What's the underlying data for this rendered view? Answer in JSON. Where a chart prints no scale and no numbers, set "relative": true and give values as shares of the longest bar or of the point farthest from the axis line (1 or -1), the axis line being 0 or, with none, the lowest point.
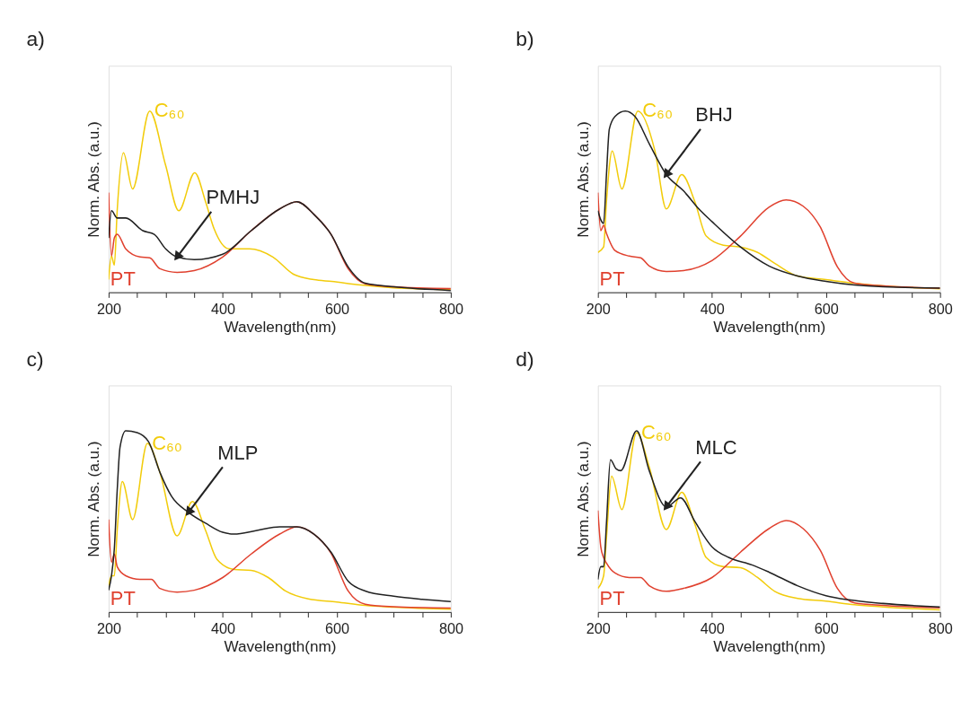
{
  "chart_data": [
    {
      "type": "line",
      "title": "a)",
      "xlabel": "Wavelength(nm)",
      "ylabel": "Norm. Abs. (a.u.)",
      "relative": true,
      "tick_labels": "x",
      "xlim": [
        200,
        800
      ],
      "xticks": [
        200,
        {
          "value": 250,
          "label": null
        },
        {
          "value": 300,
          "label": null
        },
        {
          "value": 350,
          "label": null
        },
        400,
        {
          "value": 450,
          "label": null
        },
        {
          "value": 500,
          "label": null
        },
        {
          "value": 550,
          "label": null
        },
        600,
        {
          "value": 650,
          "label": null
        },
        {
          "value": 700,
          "label": null
        },
        {
          "value": 750,
          "label": null
        },
        800
      ],
      "series": [
        {
          "name": "C₆₀",
          "color": "#f2cc0c",
          "x": [
            200,
            205,
            210,
            215,
            226,
            242,
            272,
            300,
            323,
            351,
            370,
            385,
            411,
            447,
            488,
            524,
            560,
            591,
            642,
            700,
            800
          ],
          "values": [
            0.07,
            0.2,
            0.15,
            0.45,
            0.77,
            0.57,
            1.0,
            0.7,
            0.45,
            0.66,
            0.5,
            0.35,
            0.24,
            0.24,
            0.195,
            0.1,
            0.07,
            0.06,
            0.04,
            0.025,
            0.016
          ]
        },
        {
          "name": "PT",
          "color": "#e0412f",
          "x": [
            200,
            205,
            210,
            215,
            230,
            255,
            272,
            290,
            320,
            350,
            400,
            450,
            500,
            530,
            560,
            590,
            620,
            650,
            700,
            800
          ],
          "values": [
            0.55,
            0.2,
            0.3,
            0.32,
            0.24,
            0.195,
            0.19,
            0.13,
            0.11,
            0.12,
            0.195,
            0.34,
            0.46,
            0.5,
            0.43,
            0.32,
            0.13,
            0.047,
            0.03,
            0.02
          ]
        },
        {
          "name": "PMHJ",
          "color": "#222222",
          "x": [
            200,
            205,
            215,
            230,
            260,
            280,
            300,
            320,
            350,
            400,
            450,
            500,
            530,
            560,
            590,
            620,
            650,
            700,
            800
          ],
          "values": [
            0.3,
            0.45,
            0.41,
            0.41,
            0.34,
            0.32,
            0.24,
            0.195,
            0.18,
            0.21,
            0.34,
            0.46,
            0.5,
            0.43,
            0.32,
            0.14,
            0.05,
            0.03,
            0.01
          ]
        }
      ]
    },
    {
      "type": "line",
      "title": "b)",
      "xlabel": "Wavelength(nm)",
      "ylabel": "Norm. Abs. (a.u.)",
      "relative": true,
      "tick_labels": "x",
      "xlim": [
        200,
        800
      ],
      "xticks": [
        200,
        {
          "value": 250,
          "label": null
        },
        {
          "value": 300,
          "label": null
        },
        {
          "value": 350,
          "label": null
        },
        400,
        {
          "value": 450,
          "label": null
        },
        {
          "value": 500,
          "label": null
        },
        {
          "value": 550,
          "label": null
        },
        600,
        {
          "value": 650,
          "label": null
        },
        {
          "value": 700,
          "label": null
        },
        {
          "value": 750,
          "label": null
        },
        800
      ],
      "series": [
        {
          "name": "C₆₀",
          "color": "#f2cc0c",
          "x": [
            200,
            210,
            215,
            225,
            242,
            270,
            300,
            320,
            347,
            370,
            390,
            420,
            450,
            480,
            510,
            550,
            600,
            650,
            700,
            800
          ],
          "values": [
            0.22,
            0.25,
            0.5,
            0.78,
            0.57,
            1.0,
            0.78,
            0.46,
            0.65,
            0.5,
            0.31,
            0.26,
            0.25,
            0.22,
            0.16,
            0.09,
            0.07,
            0.05,
            0.035,
            0.02
          ]
        },
        {
          "name": "PT",
          "color": "#e0412f",
          "x": [
            200,
            205,
            210,
            215,
            230,
            255,
            275,
            290,
            320,
            350,
            400,
            450,
            500,
            530,
            560,
            590,
            620,
            650,
            700,
            800
          ],
          "values": [
            0.55,
            0.34,
            0.37,
            0.325,
            0.23,
            0.2,
            0.19,
            0.145,
            0.115,
            0.12,
            0.175,
            0.31,
            0.47,
            0.51,
            0.475,
            0.36,
            0.14,
            0.05,
            0.035,
            0.023
          ]
        },
        {
          "name": "BHJ",
          "color": "#222222",
          "x": [
            200,
            205,
            210,
            215,
            220,
            230,
            248,
            265,
            290,
            320,
            350,
            380,
            400,
            450,
            500,
            550,
            600,
            650,
            700,
            800
          ],
          "values": [
            0.45,
            0.4,
            0.38,
            0.65,
            0.9,
            0.97,
            1.0,
            0.97,
            0.82,
            0.65,
            0.56,
            0.45,
            0.39,
            0.25,
            0.145,
            0.09,
            0.06,
            0.04,
            0.03,
            0.023
          ]
        }
      ]
    },
    {
      "type": "line",
      "title": "c)",
      "xlabel": "Wavelength(nm)",
      "ylabel": "Norm. Abs. (a.u.)",
      "relative": true,
      "tick_labels": "x",
      "xlim": [
        200,
        800
      ],
      "xticks": [
        200,
        {
          "value": 250,
          "label": null
        },
        {
          "value": 300,
          "label": null
        },
        {
          "value": 350,
          "label": null
        },
        400,
        {
          "value": 450,
          "label": null
        },
        {
          "value": 500,
          "label": null
        },
        {
          "value": 550,
          "label": null
        },
        600,
        {
          "value": 650,
          "label": null
        },
        {
          "value": 700,
          "label": null
        },
        {
          "value": 750,
          "label": null
        },
        800
      ],
      "series": [
        {
          "name": "C₆₀",
          "color": "#f2cc0c",
          "x": [
            200,
            205,
            210,
            215,
            224,
            242,
            268,
            290,
            320,
            347,
            370,
            390,
            420,
            450,
            480,
            510,
            550,
            600,
            650,
            700,
            800
          ],
          "values": [
            0.145,
            0.2,
            0.2,
            0.45,
            0.72,
            0.51,
            0.93,
            0.77,
            0.42,
            0.61,
            0.45,
            0.29,
            0.235,
            0.23,
            0.19,
            0.116,
            0.072,
            0.055,
            0.036,
            0.026,
            0.015
          ]
        },
        {
          "name": "PT",
          "color": "#e0412f",
          "x": [
            200,
            205,
            210,
            215,
            230,
            255,
            275,
            290,
            320,
            350,
            400,
            450,
            500,
            530,
            560,
            590,
            620,
            650,
            700,
            800
          ],
          "values": [
            0.51,
            0.275,
            0.32,
            0.25,
            0.2,
            0.18,
            0.18,
            0.13,
            0.11,
            0.12,
            0.19,
            0.32,
            0.43,
            0.47,
            0.43,
            0.325,
            0.116,
            0.043,
            0.029,
            0.022
          ]
        },
        {
          "name": "MLP",
          "color": "#222222",
          "x": [
            200,
            205,
            210,
            215,
            220,
            230,
            250,
            270,
            290,
            310,
            340,
            370,
            400,
            420,
            460,
            500,
            530,
            560,
            590,
            620,
            650,
            700,
            750,
            800
          ],
          "values": [
            0.12,
            0.2,
            0.35,
            0.67,
            0.91,
            1.0,
            0.99,
            0.94,
            0.77,
            0.64,
            0.55,
            0.49,
            0.44,
            0.43,
            0.45,
            0.47,
            0.47,
            0.43,
            0.33,
            0.17,
            0.116,
            0.087,
            0.07,
            0.058
          ]
        }
      ]
    },
    {
      "type": "line",
      "title": "d)",
      "xlabel": "Wavelength(nm)",
      "ylabel": "Norm. Abs. (a.u.)",
      "relative": true,
      "tick_labels": "x",
      "xlim": [
        200,
        800
      ],
      "xticks": [
        200,
        {
          "value": 250,
          "label": null
        },
        {
          "value": 300,
          "label": null
        },
        {
          "value": 350,
          "label": null
        },
        400,
        {
          "value": 450,
          "label": null
        },
        {
          "value": 500,
          "label": null
        },
        {
          "value": 550,
          "label": null
        },
        600,
        {
          "value": 650,
          "label": null
        },
        {
          "value": 700,
          "label": null
        },
        {
          "value": 750,
          "label": null
        },
        800
      ],
      "series": [
        {
          "name": "C₆₀",
          "color": "#f2cc0c",
          "x": [
            200,
            210,
            215,
            224,
            242,
            268,
            290,
            320,
            347,
            370,
            390,
            420,
            450,
            480,
            510,
            550,
            600,
            650,
            700,
            800
          ],
          "values": [
            0.13,
            0.2,
            0.41,
            0.75,
            0.565,
            0.99,
            0.8,
            0.455,
            0.66,
            0.485,
            0.3,
            0.25,
            0.245,
            0.19,
            0.114,
            0.075,
            0.06,
            0.04,
            0.028,
            0.012
          ]
        },
        {
          "name": "PT",
          "color": "#e0412f",
          "x": [
            200,
            205,
            210,
            215,
            230,
            255,
            275,
            290,
            320,
            350,
            400,
            450,
            500,
            530,
            560,
            590,
            620,
            650,
            700,
            800
          ],
          "values": [
            0.56,
            0.36,
            0.3,
            0.27,
            0.215,
            0.19,
            0.19,
            0.145,
            0.114,
            0.13,
            0.19,
            0.33,
            0.46,
            0.505,
            0.46,
            0.34,
            0.13,
            0.05,
            0.036,
            0.023
          ]
        },
        {
          "name": "MLC",
          "color": "#222222",
          "x": [
            200,
            205,
            210,
            215,
            222,
            232,
            240,
            268,
            290,
            320,
            345,
            370,
            400,
            430,
            470,
            500,
            550,
            600,
            640,
            700,
            800
          ],
          "values": [
            0.18,
            0.25,
            0.25,
            0.49,
            0.84,
            0.79,
            0.78,
            1.0,
            0.78,
            0.58,
            0.63,
            0.5,
            0.36,
            0.3,
            0.26,
            0.22,
            0.145,
            0.09,
            0.067,
            0.047,
            0.028
          ]
        }
      ]
    }
  ]
}
